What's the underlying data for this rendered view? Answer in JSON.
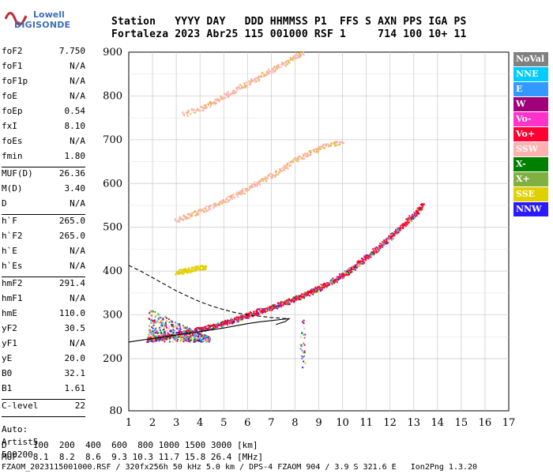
{
  "logo": {
    "line1": "Lowell",
    "line2": "DIGISONDE"
  },
  "header": {
    "row1": [
      "Station",
      "YYYY",
      "DAY",
      "DDD",
      "HHMMSS",
      "P1",
      "FFS",
      "S",
      "AXN",
      "PPS",
      "IGA",
      "PS"
    ],
    "row2": [
      "Fortaleza",
      "2023",
      "Abr25",
      "115",
      "001000",
      "RSF",
      "1",
      "714",
      "100",
      "10+",
      "11"
    ]
  },
  "params": {
    "group1": [
      {
        "name": "foF2",
        "value": "7.750"
      },
      {
        "name": "foF1",
        "value": "N/A"
      },
      {
        "name": "foF1p",
        "value": "N/A"
      },
      {
        "name": "foE",
        "value": "N/A"
      },
      {
        "name": "foEp",
        "value": "0.54"
      },
      {
        "name": "fxI",
        "value": "8.10"
      },
      {
        "name": "foEs",
        "value": "N/A"
      },
      {
        "name": "fmin",
        "value": "1.80"
      }
    ],
    "group2": [
      {
        "name": "MUF(D)",
        "value": "26.36"
      },
      {
        "name": "M(D)",
        "value": "3.40"
      },
      {
        "name": "D",
        "value": "N/A"
      }
    ],
    "group3": [
      {
        "name": "h`F",
        "value": "265.0"
      },
      {
        "name": "h`F2",
        "value": "265.0"
      },
      {
        "name": "h`E",
        "value": "N/A"
      },
      {
        "name": "h`Es",
        "value": "N/A"
      }
    ],
    "group4": [
      {
        "name": "hmF2",
        "value": "291.4"
      },
      {
        "name": "hmF1",
        "value": "N/A"
      },
      {
        "name": "hmE",
        "value": "110.0"
      },
      {
        "name": "yF2",
        "value": "30.5"
      },
      {
        "name": "yF1",
        "value": "N/A"
      },
      {
        "name": "yE",
        "value": "20.0"
      },
      {
        "name": "B0",
        "value": "32.1"
      },
      {
        "name": "B1",
        "value": "1.61"
      }
    ],
    "group5": [
      {
        "name": "C-level",
        "value": "22"
      }
    ],
    "aux": [
      "Auto:",
      "Artist5",
      "500200"
    ]
  },
  "legend": [
    {
      "label": "NoVal",
      "color": "#808080"
    },
    {
      "label": "NNE",
      "color": "#00ccff"
    },
    {
      "label": "E",
      "color": "#3399ff"
    },
    {
      "label": "W",
      "color": "#a0007a"
    },
    {
      "label": "Vo-",
      "color": "#ff33cc"
    },
    {
      "label": "Vo+",
      "color": "#ff0033"
    },
    {
      "label": "SSW",
      "color": "#ffb0b0"
    },
    {
      "label": "X-",
      "color": "#008000"
    },
    {
      "label": "X+",
      "color": "#80b040"
    },
    {
      "label": "SSE",
      "color": "#e0d000"
    },
    {
      "label": "NNW",
      "color": "#2a1aff"
    }
  ],
  "bottom": {
    "d_row": "D     100  200  400  600  800 1000 1500 3000 [km]",
    "muf_row": "MUF   8.1  8.2  8.6  9.3 10.3 11.7 15.8 26.4 [MHz]",
    "footer": "FZAOM_2023115001000.RSF / 320fx256h 50 kHz 5.0 km / DPS-4 FZAOM 904 / 3.9 S 321.6 E   Ion2Png 1.3.20"
  },
  "chart_data": {
    "type": "scatter",
    "x_ticks": [
      "1",
      "2",
      "3",
      "4",
      "5",
      "6",
      "7",
      "8",
      "9",
      "10",
      "11",
      "12",
      "13",
      "14",
      "15",
      "16",
      "17"
    ],
    "y_ticks": [
      "80",
      "200",
      "300",
      "400",
      "500",
      "600",
      "700",
      "800",
      "900"
    ],
    "xlim": [
      1,
      17
    ],
    "ylim": [
      80,
      900
    ],
    "grid": true,
    "legend_position": "right",
    "traces": [
      {
        "name": "F2 O-trace",
        "color": "#ff0033",
        "x": [
          1.8,
          2.0,
          2.5,
          3.0,
          3.5,
          4.0,
          4.5,
          5.0,
          5.5,
          6.0,
          6.5,
          7.0,
          7.5,
          8.0,
          8.5,
          9.0,
          9.5,
          10.0,
          10.5,
          11.0,
          11.5,
          12.0,
          12.5,
          13.0,
          13.4
        ],
        "y": [
          245,
          246,
          250,
          256,
          262,
          268,
          274,
          282,
          291,
          300,
          310,
          318,
          328,
          338,
          350,
          362,
          376,
          392,
          412,
          432,
          455,
          478,
          505,
          530,
          555
        ]
      },
      {
        "name": "F2 second hop",
        "color": "#ffb0b0",
        "x": [
          3.0,
          3.5,
          4.0,
          4.5,
          5.0,
          5.5,
          6.0,
          6.5,
          7.0,
          7.5,
          8.0,
          8.5,
          9.0,
          9.5,
          10.0
        ],
        "y": [
          518,
          528,
          538,
          550,
          562,
          575,
          590,
          605,
          620,
          637,
          655,
          668,
          682,
          690,
          698
        ]
      },
      {
        "name": "F2 third hop",
        "color": "#ffb0b0",
        "x": [
          3.3,
          4.0,
          4.5,
          5.0,
          5.5,
          6.0,
          6.5,
          7.0,
          7.5,
          8.0,
          8.3
        ],
        "y": [
          760,
          772,
          785,
          800,
          815,
          830,
          845,
          860,
          875,
          892,
          900
        ]
      },
      {
        "name": "E-region echoes",
        "color": "#e0d000",
        "x": [
          3.0,
          3.3,
          3.6,
          3.9,
          4.2
        ],
        "y": [
          397,
          401,
          405,
          408,
          411
        ]
      }
    ],
    "profile": {
      "dashed": {
        "x": [
          1,
          1.5,
          2,
          2.5,
          3,
          3.5,
          4,
          4.5,
          5,
          5.5,
          6,
          6.5,
          7,
          7.5,
          7.75
        ],
        "y": [
          413,
          400,
          385,
          370,
          355,
          342,
          330,
          320,
          312,
          305,
          300,
          297,
          294,
          292,
          291.4
        ]
      },
      "solid": {
        "x": [
          1,
          1.5,
          2,
          2.5,
          3,
          3.5,
          4,
          4.5,
          5,
          5.5,
          6,
          6.5,
          7,
          7.5,
          7.75,
          7.6,
          7.2
        ],
        "y": [
          238,
          242,
          246,
          250,
          254,
          258,
          262,
          266,
          270,
          275,
          280,
          284,
          287,
          290,
          291.4,
          285,
          278
        ]
      }
    }
  }
}
